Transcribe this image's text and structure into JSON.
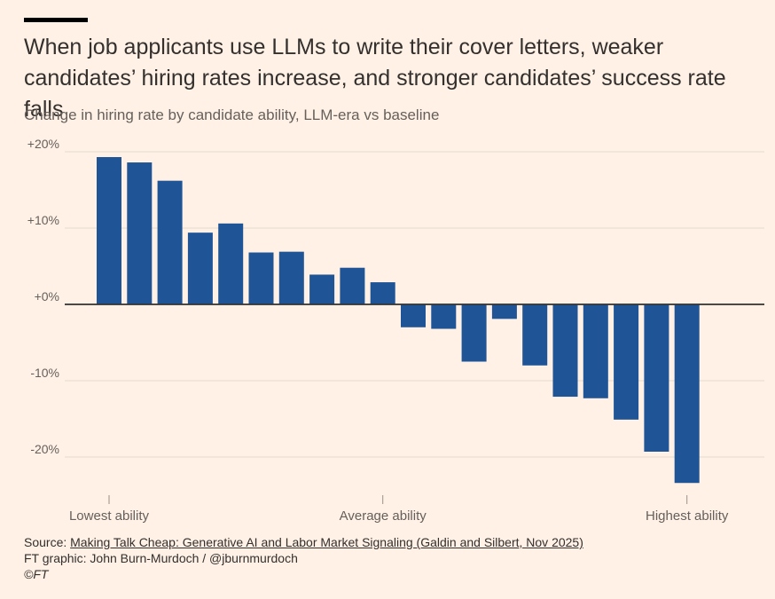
{
  "header": {
    "title": "When job applicants use LLMs to write their cover letters, weaker candidates’ hiring rates increase, and stronger candidates’ success rate falls",
    "subtitle": "Change in hiring rate by candidate ability, LLM-era vs baseline"
  },
  "chart_data": {
    "type": "bar",
    "title": "When job applicants use LLMs to write their cover letters, weaker candidates’ hiring rates increase, and stronger candidates’ success rate falls",
    "subtitle": "Change in hiring rate by candidate ability, LLM-era vs baseline",
    "xlabel": "",
    "ylabel": "",
    "ylim": [
      -25,
      23
    ],
    "yticks": [
      {
        "value": 20,
        "label": "+20%"
      },
      {
        "value": 10,
        "label": "+10%"
      },
      {
        "value": 0,
        "label": "+0%"
      },
      {
        "value": -10,
        "label": "-10%"
      },
      {
        "value": -20,
        "label": "-20%"
      }
    ],
    "xticks": [
      {
        "index": 0,
        "label": "Lowest ability"
      },
      {
        "index": 9,
        "label": "Average ability"
      },
      {
        "index": 19,
        "label": "Highest ability"
      }
    ],
    "values": [
      19.3,
      18.6,
      16.2,
      9.4,
      10.6,
      6.8,
      6.9,
      3.9,
      4.8,
      2.9,
      -3.0,
      -3.2,
      -7.5,
      -1.9,
      -8.0,
      -12.1,
      -12.3,
      -15.1,
      -19.3,
      -23.4
    ],
    "color": "#1f5496",
    "grid": true
  },
  "footer": {
    "source_prefix": "Source: ",
    "source_link": "Making Talk Cheap: Generative AI and Labor Market Signaling (Galdin and Silbert, Nov 2025)",
    "credit": "FT graphic: John Burn-Murdoch / @jburnmurdoch",
    "copyright": "©FT"
  }
}
